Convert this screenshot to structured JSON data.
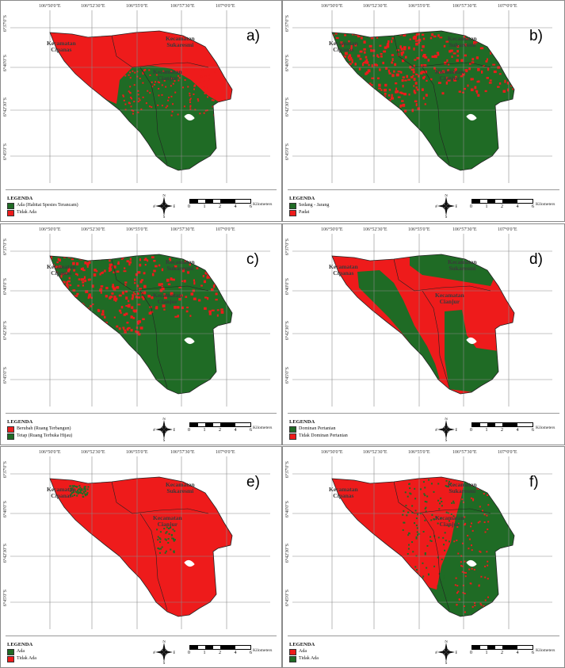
{
  "colors": {
    "green": "#1f6b25",
    "red": "#ee1b1b"
  },
  "coords": {
    "top": [
      "106°50'0\"E",
      "106°52'30\"E",
      "106°55'0\"E",
      "106°57'30\"E",
      "107°0'0\"E"
    ],
    "left": [
      "6°37'0\"S",
      "6°40'0\"S",
      "6°42'30\"S",
      "6°45'0\"S"
    ]
  },
  "places": {
    "cipanas_line1": "Kecamatan",
    "cipanas_line2": "Cipanas",
    "sukaresmi_line1": "Kecamatan",
    "sukaresmi_line2": "Sukaresmi",
    "cianjur_line1": "Kecamatan",
    "cianjur_line2": "Cianjur"
  },
  "compass": {
    "n": "N",
    "s": "S",
    "w": "W",
    "e": "E"
  },
  "scale": {
    "ticks": [
      "0",
      "1",
      "2",
      "4",
      "6"
    ],
    "unit": "Kilometers"
  },
  "panels": [
    {
      "label": "a)",
      "legend_title": "LEGENDA",
      "items": [
        {
          "text": "Ada (Habitat Spesies Terancam)",
          "color": "green"
        },
        {
          "text": "Tidak Ada",
          "color": "red"
        }
      ],
      "map_pattern": "top-red"
    },
    {
      "label": "b)",
      "legend_title": "LEGENDA",
      "items": [
        {
          "text": "Sedang - Jarang",
          "color": "green"
        },
        {
          "text": "Padat",
          "color": "red"
        }
      ],
      "map_pattern": "scattered"
    },
    {
      "label": "c)",
      "legend_title": "LEGENDA",
      "items": [
        {
          "text": "Berubah (Ruang Terbangun)",
          "color": "red"
        },
        {
          "text": "Tetap (Ruang Terbuka Hijau)",
          "color": "green"
        }
      ],
      "map_pattern": "scattered"
    },
    {
      "label": "d)",
      "legend_title": "LEGENDA",
      "items": [
        {
          "text": "Dominan Pertanian",
          "color": "green"
        },
        {
          "text": "Tidak Dominan Pertanian",
          "color": "red"
        }
      ],
      "map_pattern": "zones"
    },
    {
      "label": "e)",
      "legend_title": "LEGENDA",
      "items": [
        {
          "text": "Ada",
          "color": "green"
        },
        {
          "text": "Tidak Ada",
          "color": "red"
        }
      ],
      "map_pattern": "all-red"
    },
    {
      "label": "f)",
      "legend_title": "LEGENDA",
      "items": [
        {
          "text": "Ada",
          "color": "red"
        },
        {
          "text": "Tidak Ada",
          "color": "green"
        }
      ],
      "map_pattern": "west-red"
    }
  ]
}
